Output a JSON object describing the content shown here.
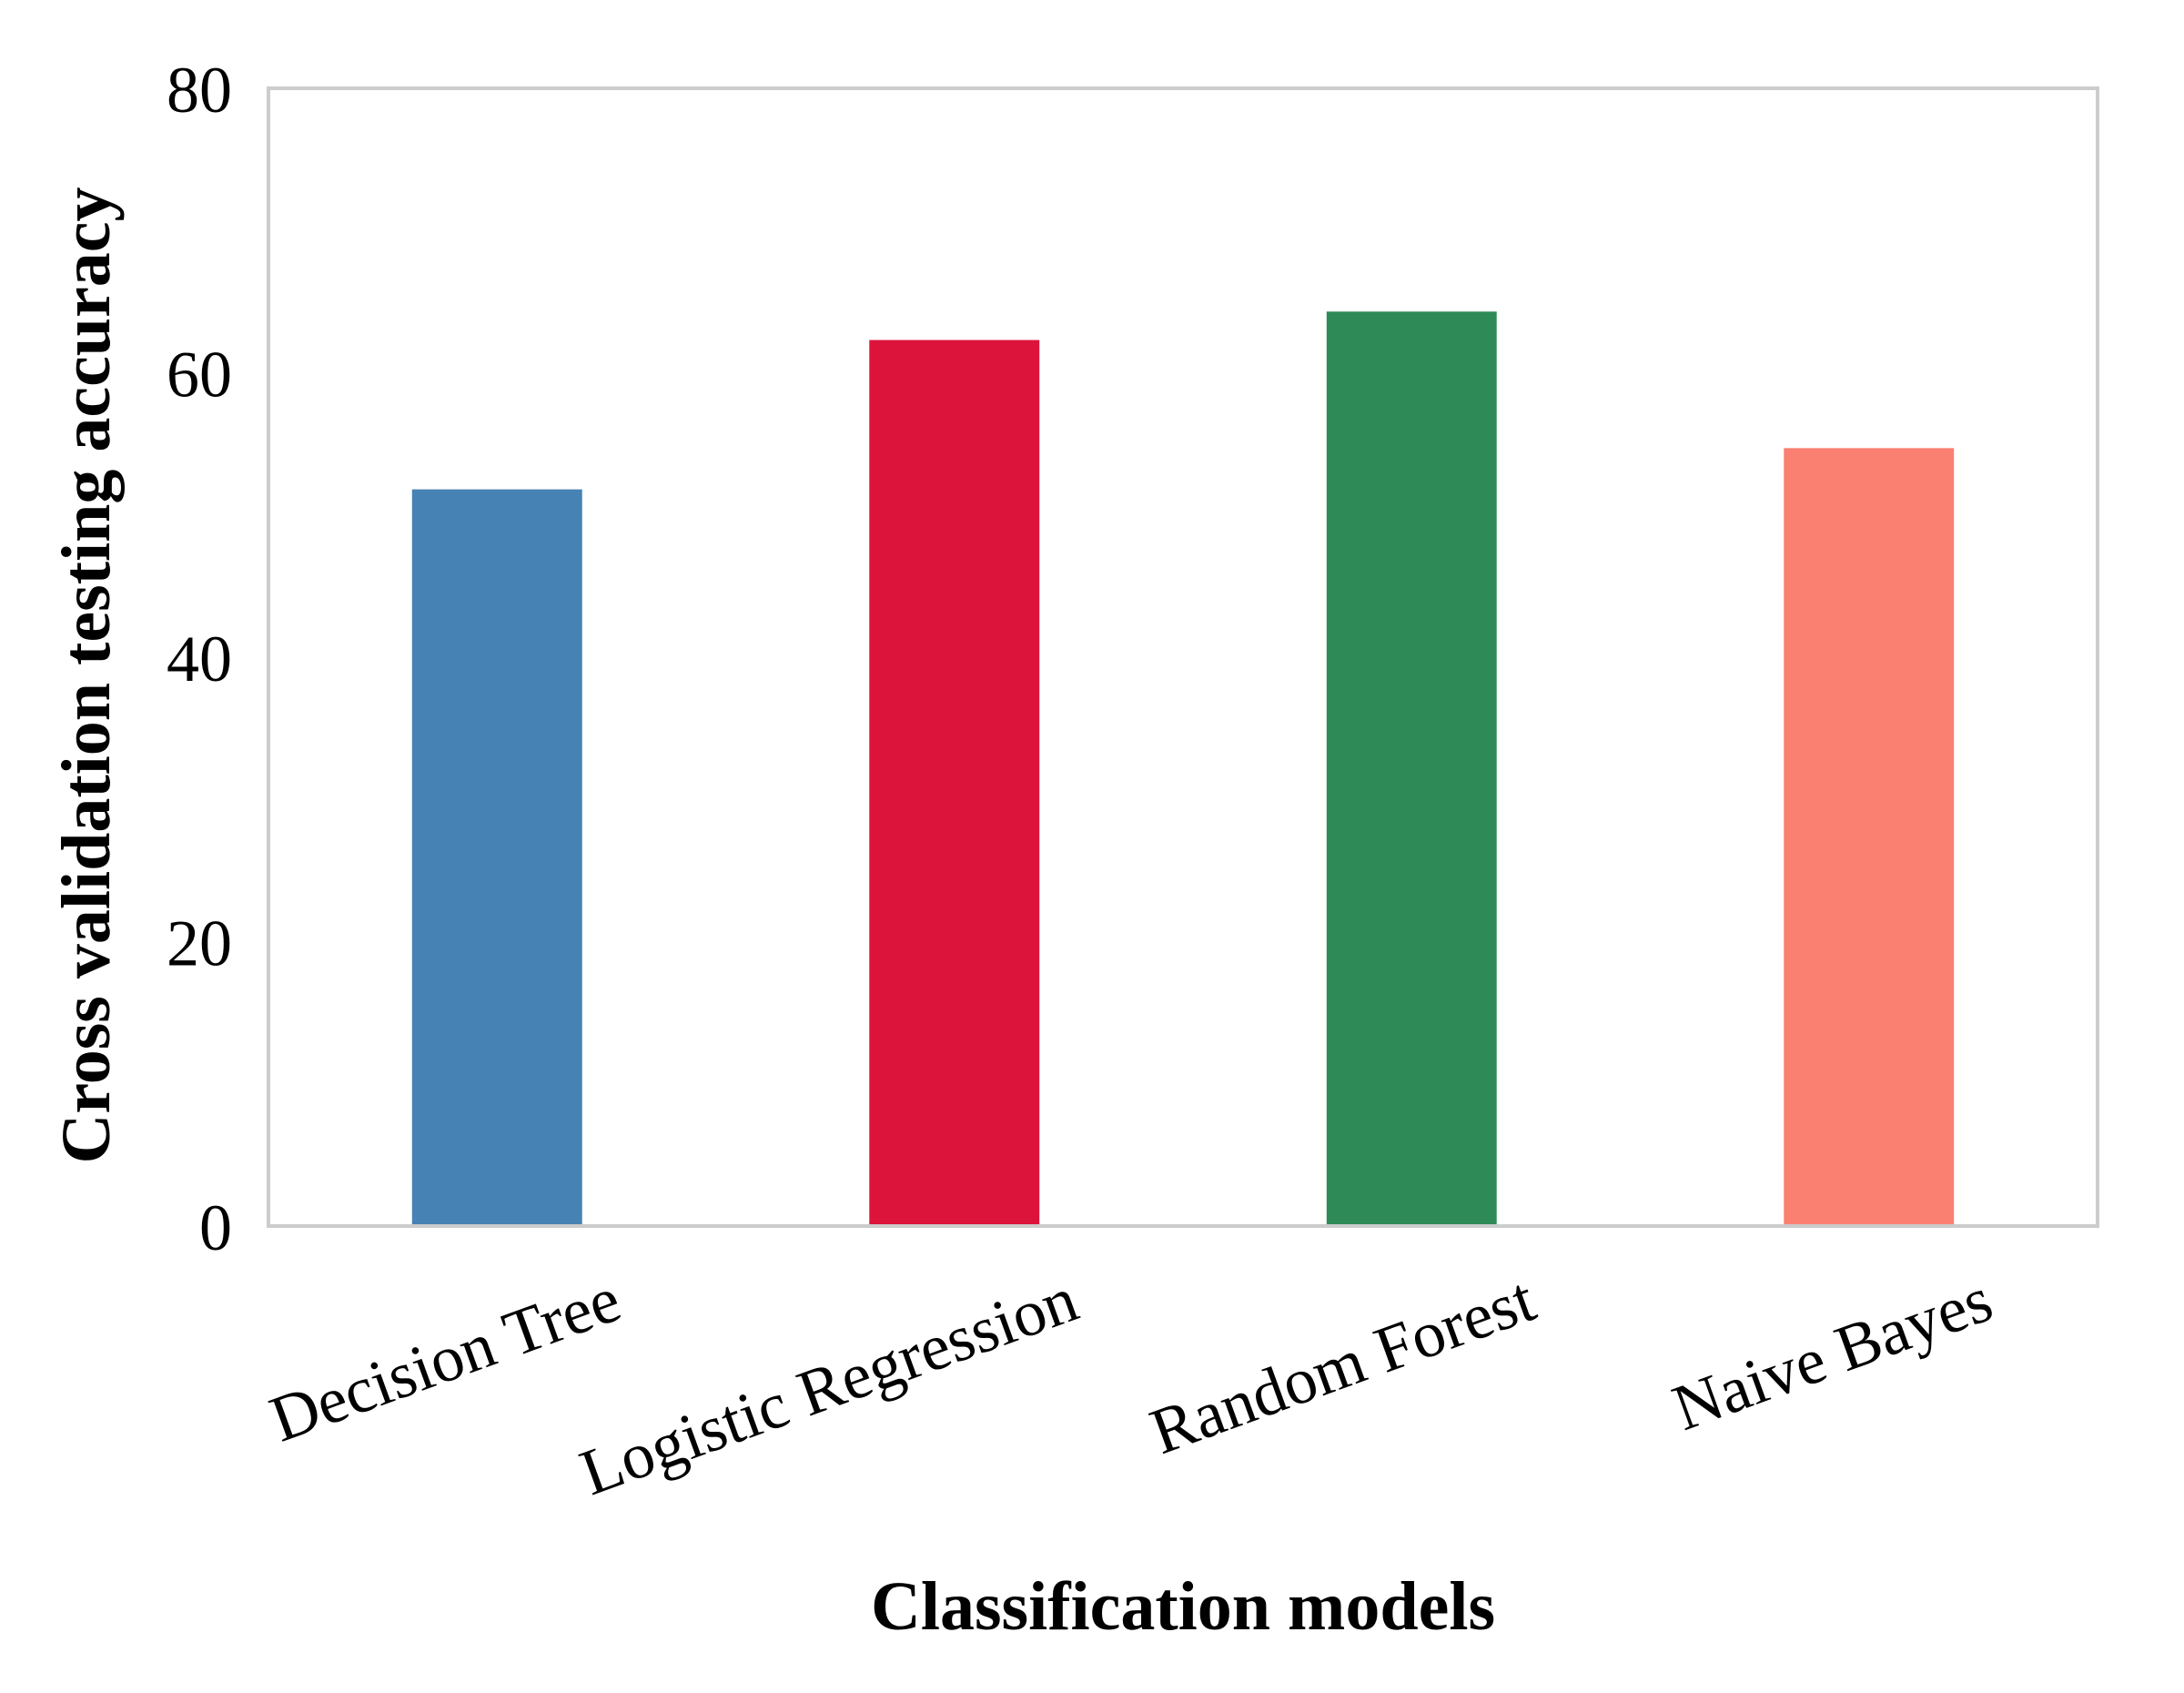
{
  "chart_data": {
    "type": "bar",
    "title": "",
    "xlabel": "Classification models",
    "ylabel": "Cross validation testing accuracy",
    "categories": [
      "Decision Tree",
      "Logistic Regression",
      "Random Forest",
      "Naive Bayes"
    ],
    "values": [
      51.8,
      62.3,
      64.3,
      54.7
    ],
    "colors": [
      "#4682b4",
      "#dc143c",
      "#2e8b57",
      "#fa8072"
    ],
    "ylim": [
      0,
      80
    ],
    "yticks": [
      0,
      20,
      40,
      60,
      80
    ],
    "grid": false,
    "legend": "none"
  }
}
